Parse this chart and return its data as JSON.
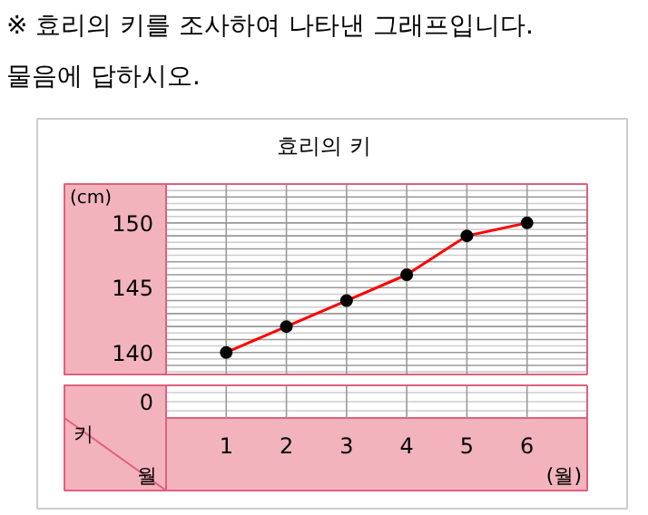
{
  "chart_data": {
    "type": "line",
    "title": "효리의 키",
    "xlabel": "(월)",
    "ylabel": "(cm)",
    "categories": [
      "1",
      "2",
      "3",
      "4",
      "5",
      "6"
    ],
    "series": [
      {
        "color": "#ff0000",
        "values": [
          140,
          142,
          144,
          146,
          149,
          150
        ]
      }
    ],
    "ylim": [
      138.3,
      153
    ],
    "yticks": [
      140,
      145,
      150
    ],
    "grid": true,
    "marker": "circle",
    "annotations": [
      "※ 효리의 키를 조사하여 나타낸 그래프입니다.",
      "물음에 답하시오.",
      "0",
      "키",
      "월"
    ]
  }
}
